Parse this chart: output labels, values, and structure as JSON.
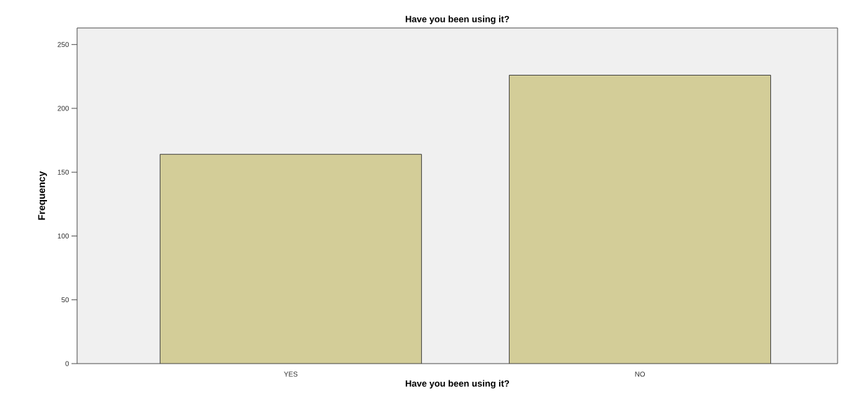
{
  "chart_data": {
    "type": "bar",
    "title": "Have you been using it?",
    "xlabel": "Have you been using it?",
    "ylabel": "Frequency",
    "categories": [
      "YES",
      "NO"
    ],
    "values": [
      164,
      226
    ],
    "color": "#d3cd98",
    "ylim": [
      0,
      263
    ],
    "yticks": [
      0,
      50,
      100,
      150,
      200,
      250
    ],
    "grid": false
  }
}
